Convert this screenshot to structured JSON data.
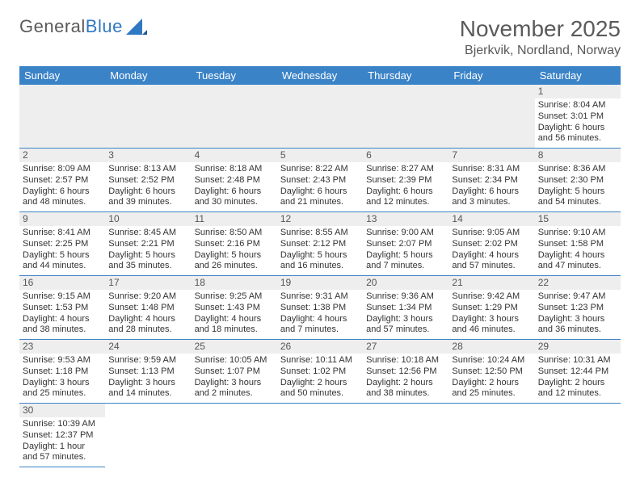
{
  "brand": {
    "word1": "General",
    "word2": "Blue"
  },
  "title": "November 2025",
  "location": "Bjerkvik, Nordland, Norway",
  "colors": {
    "header_bg": "#3b83c7",
    "header_text": "#ffffff",
    "rule": "#3b83c7",
    "daynum_bg": "#eeeeee",
    "text": "#333333",
    "title_text": "#5a5a5a",
    "brand_blue": "#2f78c2"
  },
  "weekdays": [
    "Sunday",
    "Monday",
    "Tuesday",
    "Wednesday",
    "Thursday",
    "Friday",
    "Saturday"
  ],
  "days": {
    "1": {
      "sunrise": "8:04 AM",
      "sunset": "3:01 PM",
      "daylight": "6 hours and 56 minutes."
    },
    "2": {
      "sunrise": "8:09 AM",
      "sunset": "2:57 PM",
      "daylight": "6 hours and 48 minutes."
    },
    "3": {
      "sunrise": "8:13 AM",
      "sunset": "2:52 PM",
      "daylight": "6 hours and 39 minutes."
    },
    "4": {
      "sunrise": "8:18 AM",
      "sunset": "2:48 PM",
      "daylight": "6 hours and 30 minutes."
    },
    "5": {
      "sunrise": "8:22 AM",
      "sunset": "2:43 PM",
      "daylight": "6 hours and 21 minutes."
    },
    "6": {
      "sunrise": "8:27 AM",
      "sunset": "2:39 PM",
      "daylight": "6 hours and 12 minutes."
    },
    "7": {
      "sunrise": "8:31 AM",
      "sunset": "2:34 PM",
      "daylight": "6 hours and 3 minutes."
    },
    "8": {
      "sunrise": "8:36 AM",
      "sunset": "2:30 PM",
      "daylight": "5 hours and 54 minutes."
    },
    "9": {
      "sunrise": "8:41 AM",
      "sunset": "2:25 PM",
      "daylight": "5 hours and 44 minutes."
    },
    "10": {
      "sunrise": "8:45 AM",
      "sunset": "2:21 PM",
      "daylight": "5 hours and 35 minutes."
    },
    "11": {
      "sunrise": "8:50 AM",
      "sunset": "2:16 PM",
      "daylight": "5 hours and 26 minutes."
    },
    "12": {
      "sunrise": "8:55 AM",
      "sunset": "2:12 PM",
      "daylight": "5 hours and 16 minutes."
    },
    "13": {
      "sunrise": "9:00 AM",
      "sunset": "2:07 PM",
      "daylight": "5 hours and 7 minutes."
    },
    "14": {
      "sunrise": "9:05 AM",
      "sunset": "2:02 PM",
      "daylight": "4 hours and 57 minutes."
    },
    "15": {
      "sunrise": "9:10 AM",
      "sunset": "1:58 PM",
      "daylight": "4 hours and 47 minutes."
    },
    "16": {
      "sunrise": "9:15 AM",
      "sunset": "1:53 PM",
      "daylight": "4 hours and 38 minutes."
    },
    "17": {
      "sunrise": "9:20 AM",
      "sunset": "1:48 PM",
      "daylight": "4 hours and 28 minutes."
    },
    "18": {
      "sunrise": "9:25 AM",
      "sunset": "1:43 PM",
      "daylight": "4 hours and 18 minutes."
    },
    "19": {
      "sunrise": "9:31 AM",
      "sunset": "1:38 PM",
      "daylight": "4 hours and 7 minutes."
    },
    "20": {
      "sunrise": "9:36 AM",
      "sunset": "1:34 PM",
      "daylight": "3 hours and 57 minutes."
    },
    "21": {
      "sunrise": "9:42 AM",
      "sunset": "1:29 PM",
      "daylight": "3 hours and 46 minutes."
    },
    "22": {
      "sunrise": "9:47 AM",
      "sunset": "1:23 PM",
      "daylight": "3 hours and 36 minutes."
    },
    "23": {
      "sunrise": "9:53 AM",
      "sunset": "1:18 PM",
      "daylight": "3 hours and 25 minutes."
    },
    "24": {
      "sunrise": "9:59 AM",
      "sunset": "1:13 PM",
      "daylight": "3 hours and 14 minutes."
    },
    "25": {
      "sunrise": "10:05 AM",
      "sunset": "1:07 PM",
      "daylight": "3 hours and 2 minutes."
    },
    "26": {
      "sunrise": "10:11 AM",
      "sunset": "1:02 PM",
      "daylight": "2 hours and 50 minutes."
    },
    "27": {
      "sunrise": "10:18 AM",
      "sunset": "12:56 PM",
      "daylight": "2 hours and 38 minutes."
    },
    "28": {
      "sunrise": "10:24 AM",
      "sunset": "12:50 PM",
      "daylight": "2 hours and 25 minutes."
    },
    "29": {
      "sunrise": "10:31 AM",
      "sunset": "12:44 PM",
      "daylight": "2 hours and 12 minutes."
    },
    "30": {
      "sunrise": "10:39 AM",
      "sunset": "12:37 PM",
      "daylight": "1 hour and 57 minutes."
    }
  },
  "labels": {
    "sunrise_prefix": "Sunrise: ",
    "sunset_prefix": "Sunset: ",
    "daylight_prefix": "Daylight: "
  },
  "layout": {
    "first_weekday_index": 6,
    "num_days": 30
  }
}
